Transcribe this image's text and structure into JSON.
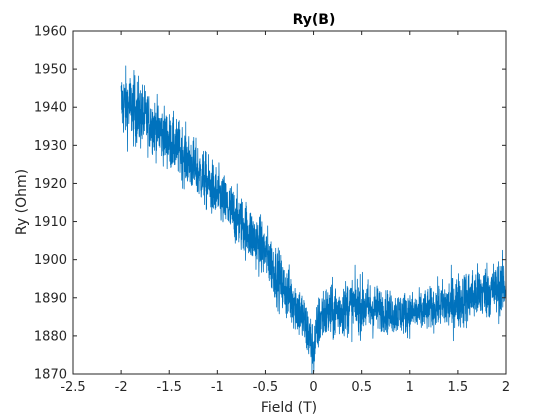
{
  "chart_data": {
    "type": "line",
    "title": "Ry(B)",
    "xlabel": "Field (T)",
    "ylabel": "Ry (Ohm)",
    "xlim": [
      -2.5,
      2
    ],
    "ylim": [
      1870,
      1960
    ],
    "xticks": [
      -2.5,
      -2,
      -1.5,
      -1,
      -0.5,
      0,
      0.5,
      1,
      1.5,
      2
    ],
    "xtick_labels": [
      "-2.5",
      "-2",
      "-1.5",
      "-1",
      "-0.5",
      "0",
      "0.5",
      "1",
      "1.5",
      "2"
    ],
    "yticks": [
      1870,
      1880,
      1890,
      1900,
      1910,
      1920,
      1930,
      1940,
      1950,
      1960
    ],
    "ytick_labels": [
      "1870",
      "1880",
      "1890",
      "1900",
      "1910",
      "1920",
      "1930",
      "1940",
      "1950",
      "1960"
    ],
    "grid": false,
    "line_color": "#0072BD",
    "series": [
      {
        "x": [
          -2.0,
          -1.9,
          -1.8,
          -1.7,
          -1.6,
          -1.5,
          -1.4,
          -1.3,
          -1.2,
          -1.1,
          -1.0,
          -0.9,
          -0.8,
          -0.7,
          -0.6,
          -0.5,
          -0.4,
          -0.3,
          -0.2,
          -0.1,
          0.0,
          0.05,
          0.1,
          0.2,
          0.3,
          0.4,
          0.5,
          0.6,
          0.7,
          0.8,
          0.9,
          1.0,
          1.1,
          1.2,
          1.3,
          1.4,
          1.5,
          1.6,
          1.7,
          1.8,
          1.9,
          2.0
        ],
        "y": [
          1941,
          1940,
          1938,
          1936,
          1934,
          1931,
          1929,
          1926,
          1923,
          1920,
          1917,
          1914,
          1911,
          1908,
          1905,
          1902,
          1897,
          1892,
          1889,
          1884,
          1876,
          1883,
          1886,
          1886,
          1887,
          1888,
          1888,
          1887,
          1887,
          1886,
          1886,
          1886,
          1886,
          1887,
          1888,
          1888,
          1889,
          1890,
          1891,
          1892,
          1892,
          1893
        ],
        "noise": [
          5,
          5,
          5,
          4,
          4,
          4,
          4,
          4,
          4,
          4,
          4,
          4,
          4,
          4,
          4,
          4,
          4,
          4,
          4,
          4,
          4,
          4,
          4,
          4,
          4,
          4,
          4,
          4,
          3,
          3,
          3,
          3,
          3,
          3,
          3,
          4,
          4,
          4,
          4,
          4,
          4,
          4
        ]
      }
    ]
  }
}
